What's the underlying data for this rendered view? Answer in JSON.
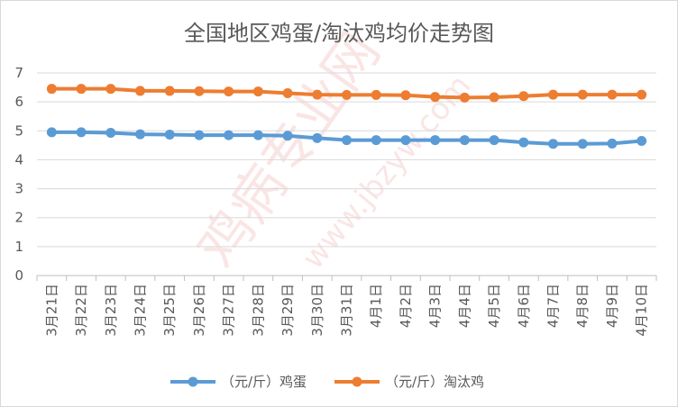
{
  "chart_data": {
    "type": "line",
    "title": "全国地区鸡蛋/淘汰鸡均价走势图",
    "xlabel": "",
    "ylabel": "",
    "ylim": [
      0,
      7
    ],
    "yticks": [
      0,
      1,
      2,
      3,
      4,
      5,
      6,
      7
    ],
    "grid": true,
    "legend_position": "bottom",
    "categories": [
      "3月21日",
      "3月22日",
      "3月23日",
      "3月24日",
      "3月25日",
      "3月26日",
      "3月27日",
      "3月28日",
      "3月29日",
      "3月30日",
      "3月31日",
      "4月1日",
      "4月2日",
      "4月3日",
      "4月4日",
      "4月5日",
      "4月6日",
      "4月7日",
      "4月8日",
      "4月9日",
      "4月10日"
    ],
    "series": [
      {
        "name": "（元/斤）鸡蛋",
        "color": "#5b9bd5",
        "values": [
          4.95,
          4.95,
          4.93,
          4.88,
          4.87,
          4.85,
          4.85,
          4.85,
          4.83,
          4.75,
          4.68,
          4.68,
          4.68,
          4.68,
          4.68,
          4.68,
          4.6,
          4.55,
          4.55,
          4.56,
          4.65
        ]
      },
      {
        "name": "（元/斤）淘汰鸡",
        "color": "#ed7d31",
        "values": [
          6.45,
          6.45,
          6.45,
          6.38,
          6.38,
          6.37,
          6.36,
          6.36,
          6.3,
          6.25,
          6.24,
          6.24,
          6.23,
          6.17,
          6.15,
          6.16,
          6.2,
          6.25,
          6.25,
          6.25,
          6.25
        ]
      }
    ]
  },
  "watermark": {
    "text": "鸡病专业网",
    "url_text": "www.jbzyw.com"
  }
}
